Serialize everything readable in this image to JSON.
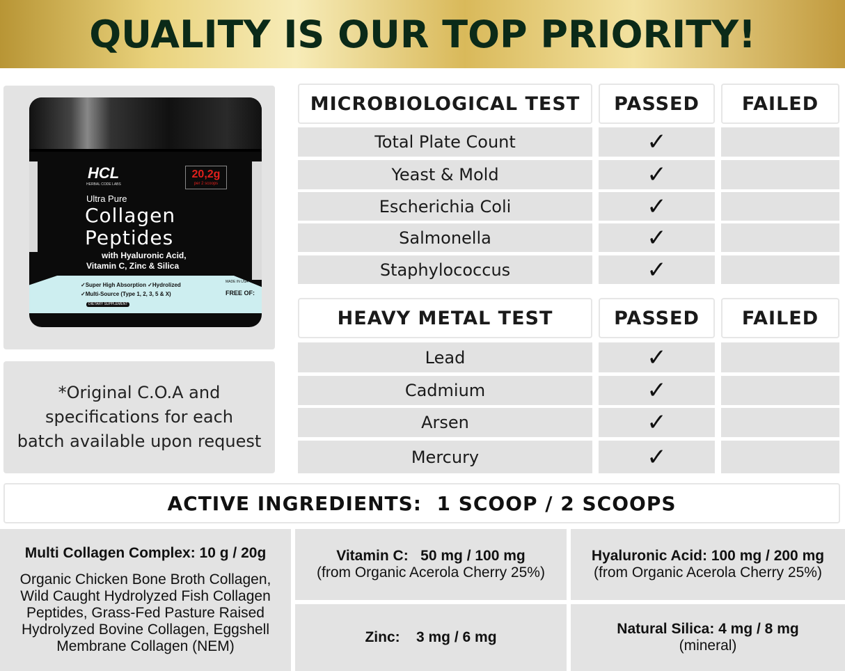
{
  "header": {
    "title": "QUALITY IS OUR TOP PRIORITY!"
  },
  "product": {
    "brand": "HCL",
    "brand_sub": "HERBAL CODE LABS",
    "badge_amount": "20,2g",
    "badge_sub": "per 2 scoops",
    "line1": "Ultra Pure",
    "name1": "Collagen",
    "name2": "Peptides",
    "with1": "with Hyaluronic Acid,",
    "with2": "Vitamin C, Zinc & Silica",
    "feat1": "✓Super High Absorption  ✓Hydrolized",
    "feat2": "✓Multi-Source (Type 1, 2, 3, 5 & X)",
    "tag": "DIETARY SUPPLEMENT",
    "made": "MADE IN USA",
    "free": "FREE OF:"
  },
  "note": {
    "lines": [
      "*Original C.O.A and",
      "specifications for each",
      "batch available upon request"
    ]
  },
  "micro_test": {
    "title": "MICROBIOLOGICAL TEST",
    "passed": "PASSED",
    "failed": "FAILED",
    "rows": [
      {
        "name": "Total Plate Count",
        "result": "passed"
      },
      {
        "name": "Yeast & Mold",
        "result": "passed"
      },
      {
        "name": "Escherichia Coli",
        "result": "passed"
      },
      {
        "name": "Salmonella",
        "result": "passed"
      },
      {
        "name": "Staphylococcus",
        "result": "passed"
      }
    ]
  },
  "metal_test": {
    "title": "HEAVY METAL TEST",
    "passed": "PASSED",
    "failed": "FAILED",
    "rows": [
      {
        "name": "Lead",
        "result": "passed"
      },
      {
        "name": "Cadmium",
        "result": "passed"
      },
      {
        "name": "Arsen",
        "result": "passed"
      },
      {
        "name": "Mercury",
        "result": "passed"
      }
    ]
  },
  "check_glyph": "✓",
  "ingredients": {
    "title": "ACTIVE INGREDIENTS:  1 SCOOP / 2 SCOOPS",
    "collagen": {
      "label": "Multi Collagen Complex:  10 g / 20g",
      "desc": "Organic Chicken Bone Broth Collagen, Wild Caught Hydrolyzed Fish Collagen Peptides, Grass-Fed Pasture Raised Hydrolyzed Bovine Collagen, Eggshell Membrane Collagen (NEM)"
    },
    "vitc": {
      "label": "Vitamin C:   50 mg / 100 mg",
      "sub": "(from Organic Acerola Cherry 25%)"
    },
    "ha": {
      "label": "Hyaluronic Acid: 100 mg / 200 mg",
      "sub": "(from Organic Acerola Cherry 25%)"
    },
    "zinc": {
      "label": "Zinc:    3 mg / 6 mg"
    },
    "silica": {
      "label": "Natural Silica: 4 mg / 8 mg",
      "sub": "(mineral)"
    }
  },
  "colors": {
    "gold": "#e9d27c",
    "title_text": "#0b2a18",
    "panel_gray": "#e3e3e3",
    "badge_red": "#e0201c",
    "label_blue": "#cdeef0"
  }
}
